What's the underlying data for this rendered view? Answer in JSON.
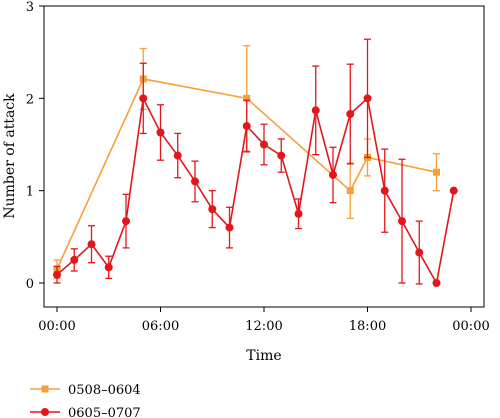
{
  "chart_data": {
    "type": "line",
    "title": "",
    "xlabel": "Time",
    "ylabel": "Number of attack",
    "xlim": [
      0,
      24
    ],
    "ylim": [
      0,
      3
    ],
    "x_ticks": [
      0,
      6,
      12,
      18,
      24
    ],
    "x_tick_labels": [
      "00:00",
      "06:00",
      "12:00",
      "18:00",
      "00:00"
    ],
    "y_ticks": [
      0,
      1,
      2,
      3
    ],
    "y_tick_labels": [
      "0",
      "1",
      "2",
      "3"
    ],
    "grid": false,
    "legend_placement": "bottom-left",
    "series": [
      {
        "name": "0508–0604",
        "color": "#f5a03a",
        "marker": "square",
        "points": [
          {
            "x": 0,
            "y": 0.15,
            "err": 0.1
          },
          {
            "x": 5,
            "y": 2.21,
            "err": 0.33
          },
          {
            "x": 11,
            "y": 2.0,
            "err": 0.57
          },
          {
            "x": 17,
            "y": 1.0,
            "err": 0.3
          },
          {
            "x": 18,
            "y": 1.36,
            "err": 0.2
          },
          {
            "x": 22,
            "y": 1.2,
            "err": 0.2
          }
        ]
      },
      {
        "name": "0605–0707",
        "color": "#e3161b",
        "marker": "circle",
        "points": [
          {
            "x": 0,
            "y": 0.09,
            "err": 0.09
          },
          {
            "x": 1,
            "y": 0.25,
            "err": 0.12
          },
          {
            "x": 2,
            "y": 0.42,
            "err": 0.2
          },
          {
            "x": 3,
            "y": 0.17,
            "err": 0.12
          },
          {
            "x": 4,
            "y": 0.67,
            "err": 0.29
          },
          {
            "x": 5,
            "y": 2.0,
            "err": 0.38
          },
          {
            "x": 6,
            "y": 1.63,
            "err": 0.3
          },
          {
            "x": 7,
            "y": 1.38,
            "err": 0.24
          },
          {
            "x": 8,
            "y": 1.1,
            "err": 0.22
          },
          {
            "x": 9,
            "y": 0.8,
            "err": 0.2
          },
          {
            "x": 10,
            "y": 0.6,
            "err": 0.22
          },
          {
            "x": 11,
            "y": 1.7,
            "err": 0.28
          },
          {
            "x": 12,
            "y": 1.5,
            "err": 0.22
          },
          {
            "x": 13,
            "y": 1.38,
            "err": 0.18
          },
          {
            "x": 14,
            "y": 0.75,
            "err": 0.16
          },
          {
            "x": 15,
            "y": 1.87,
            "err": 0.48
          },
          {
            "x": 16,
            "y": 1.17,
            "err": 0.3
          },
          {
            "x": 17,
            "y": 1.83,
            "err": 0.54
          },
          {
            "x": 18,
            "y": 2.0,
            "err": 0.64
          },
          {
            "x": 19,
            "y": 1.0,
            "err": 0.45
          },
          {
            "x": 20,
            "y": 0.67,
            "err": 0.67
          },
          {
            "x": 21,
            "y": 0.33,
            "err": 0.34
          },
          {
            "x": 22,
            "y": 0.0,
            "err": 0.0
          },
          {
            "x": 23,
            "y": 1.0,
            "err": 0.0
          }
        ]
      }
    ]
  }
}
